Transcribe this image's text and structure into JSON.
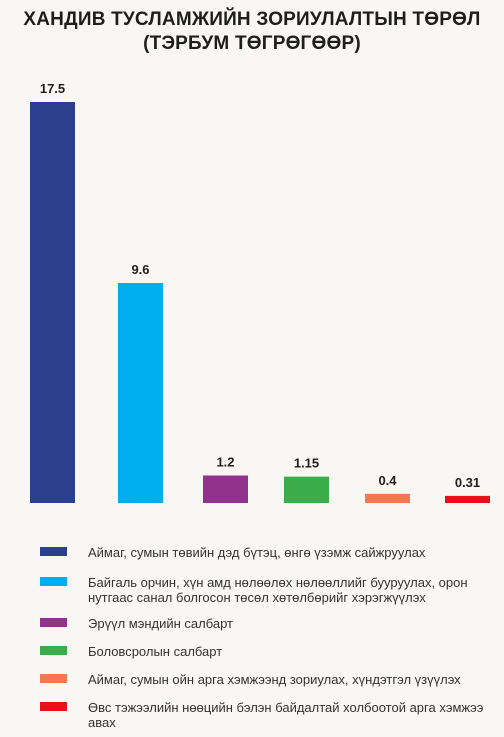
{
  "chart_data": {
    "type": "bar",
    "title_line1": "ХАНДИВ ТУСЛАМЖИЙН ЗОРИУЛАЛТЫН ТӨРӨЛ",
    "title_line2": "(ТЭРБУМ ТӨГРӨГӨӨР)",
    "categories": [
      "Аймаг, сумын төвийн дэд бүтэц, өнгө үзэмж сайжруулах",
      "Байгаль орчин, хүн амд нөлөөлөх нөлөөллийг бууруулах, орон нутгаас санал болгосон төсөл хөтөлбөрийг хэрэгжүүлэх",
      "Эрүүл мэндийн салбарт",
      "Боловсролын салбарт",
      "Аймаг, сумын ойн арга хэмжээнд зориулах, хүндэтгэл үзүүлэх",
      "Өвс тэжээлийн нөөцийн бэлэн байдалтай холбоотой арга хэмжээ авах"
    ],
    "values": [
      17.5,
      9.6,
      1.2,
      1.15,
      0.4,
      0.31
    ],
    "value_labels": [
      "17.5",
      "9.6",
      "1.2",
      "1.15",
      "0.4",
      "0.31"
    ],
    "colors": [
      "#2b3f8e",
      "#00aeef",
      "#93328e",
      "#3cab4a",
      "#f7784f",
      "#e8101b"
    ],
    "ylim": [
      0,
      17.5
    ],
    "grid": false,
    "legend_position": "bottom"
  },
  "legend": {
    "items": [
      "Аймаг, сумын төвийн дэд бүтэц, өнгө үзэмж сайжруулах",
      "Байгаль орчин, хүн амд нөлөөлөх нөлөөллийг бууруулах, орон нутгаас санал болгосон төсөл хөтөлбөрийг хэрэгжүүлэх",
      "Эрүүл мэндийн салбарт",
      "Боловсролын салбарт",
      "Аймаг, сумын ойн арга хэмжээнд зориулах, хүндэтгэл үзүүлэх",
      "Өвс тэжээлийн нөөцийн бэлэн байдалтай холбоотой арга хэмжээ авах"
    ]
  }
}
